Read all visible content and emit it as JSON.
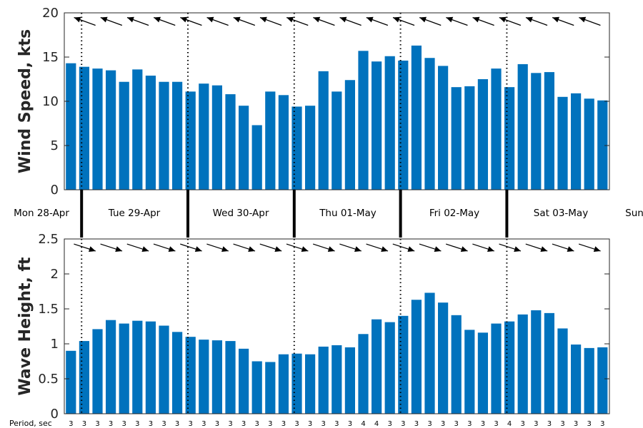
{
  "chart_data": [
    {
      "type": "bar",
      "ylabel": "Wind Speed, kts",
      "ylim": [
        0,
        20
      ],
      "yticks": [
        0,
        5,
        10,
        15,
        20
      ],
      "grid": false,
      "bar_color": "#0072BD",
      "values": [
        14.3,
        13.9,
        13.7,
        13.5,
        12.2,
        13.6,
        12.9,
        12.2,
        12.2,
        11.1,
        12.0,
        11.8,
        10.8,
        9.5,
        7.3,
        11.1,
        10.7,
        9.4,
        9.5,
        13.4,
        11.1,
        12.4,
        15.7,
        14.5,
        15.1,
        14.6,
        16.3,
        14.9,
        14.0,
        11.6,
        11.7,
        12.5,
        13.7,
        11.6,
        14.2,
        13.2,
        13.3,
        10.5,
        10.9,
        10.3,
        10.1
      ],
      "direction_arrows": "wind direction arrows along top of plot",
      "day_separators": "dotted vertical lines at midnight"
    },
    {
      "type": "bar",
      "ylabel": "Wave Height, ft",
      "ylim": [
        0,
        2.5
      ],
      "yticks": [
        "0",
        "0.5",
        "1",
        "1.5",
        "2",
        "2.5"
      ],
      "grid": false,
      "bar_color": "#0072BD",
      "values": [
        0.9,
        1.04,
        1.21,
        1.34,
        1.29,
        1.33,
        1.32,
        1.26,
        1.17,
        1.1,
        1.06,
        1.05,
        1.04,
        0.93,
        0.75,
        0.74,
        0.85,
        0.86,
        0.85,
        0.96,
        0.98,
        0.95,
        1.14,
        1.35,
        1.31,
        1.4,
        1.63,
        1.73,
        1.59,
        1.41,
        1.2,
        1.16,
        1.29,
        1.32,
        1.42,
        1.48,
        1.44,
        1.22,
        0.99,
        0.94,
        0.95
      ],
      "direction_arrows": "wave direction arrows along top of plot",
      "period_label": "Period, sec",
      "periods": [
        "3",
        "3",
        "3",
        "3",
        "3",
        "3",
        "3",
        "3",
        "3",
        "3",
        "3",
        "3",
        "3",
        "3",
        "3",
        "3",
        "3",
        "3",
        "3",
        "3",
        "3",
        "3",
        "4",
        "4",
        "3",
        "3",
        "3",
        "3",
        "3",
        "3",
        "3",
        "3",
        "3",
        "4",
        "3",
        "3",
        "3",
        "3",
        "3",
        "3",
        "3"
      ]
    }
  ],
  "wind_icon": "arrow-icon",
  "wave_icon": "arrow-icon",
  "days": [
    "Mon 28-Apr",
    "Tue 29-Apr",
    "Wed 30-Apr",
    "Thu 01-May",
    "Fri 02-May",
    "Sat 03-May",
    "Sun"
  ]
}
